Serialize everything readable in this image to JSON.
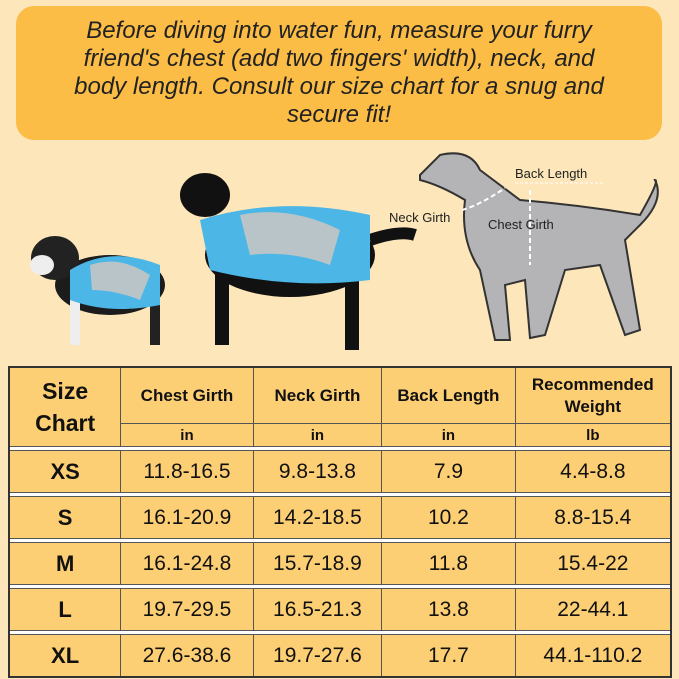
{
  "banner": {
    "text": "Before diving into water fun, measure your furry friend's chest (add two fingers' width), neck, and body length. Consult our size chart for a snug and secure fit!"
  },
  "diagram": {
    "labels": {
      "back_length": "Back Length",
      "neck_girth": "Neck Girth",
      "chest_girth": "Chest Girth"
    }
  },
  "colors": {
    "background": "#fde6b9",
    "banner": "#fbbd45",
    "cell": "#fdcf74",
    "vest": "#4cb6e6"
  },
  "table": {
    "corner": "Size Chart",
    "headers": [
      "Chest Girth",
      "Neck Girth",
      "Back Length",
      "Recommended Weight"
    ],
    "units": [
      "in",
      "in",
      "in",
      "lb"
    ],
    "rows": [
      {
        "size": "XS",
        "values": [
          "11.8-16.5",
          "9.8-13.8",
          "7.9",
          "4.4-8.8"
        ]
      },
      {
        "size": "S",
        "values": [
          "16.1-20.9",
          "14.2-18.5",
          "10.2",
          "8.8-15.4"
        ]
      },
      {
        "size": "M",
        "values": [
          "16.1-24.8",
          "15.7-18.9",
          "11.8",
          "15.4-22"
        ]
      },
      {
        "size": "L",
        "values": [
          "19.7-29.5",
          "16.5-21.3",
          "13.8",
          "22-44.1"
        ]
      },
      {
        "size": "XL",
        "values": [
          "27.6-38.6",
          "19.7-27.6",
          "17.7",
          "44.1-110.2"
        ]
      }
    ]
  }
}
